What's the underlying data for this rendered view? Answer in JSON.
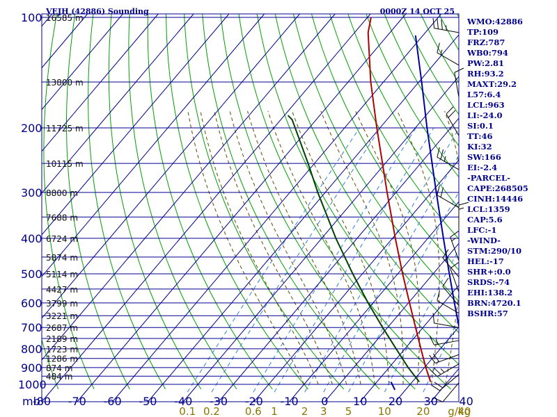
{
  "header": {
    "station": "VEJH (42886) Sounding",
    "time": "0000Z 14 OCT 25"
  },
  "chart_data": {
    "type": "skew-t",
    "title": "VEJH (42886) Sounding",
    "pressure_unit": "mb",
    "pressure_ticks": [
      100,
      200,
      300,
      400,
      500,
      600,
      700,
      800,
      900,
      1000
    ],
    "pressure_range": [
      100,
      1050
    ],
    "temperature_ticks": [
      -80,
      -70,
      -60,
      -50,
      -40,
      -30,
      -20,
      -10,
      0,
      10,
      20,
      30,
      40
    ],
    "temperature_range_at_base": [
      -80,
      40
    ],
    "mixing_ratio_unit": "g/kg",
    "mixing_ratio_ticks": [
      0.1,
      0.2,
      0.6,
      1.0,
      2.0,
      3.0,
      5.0,
      10.0,
      20.0,
      40.0
    ],
    "height_labels": [
      {
        "p": 100,
        "label": "16585 m"
      },
      {
        "p": 150,
        "label": "13800 m"
      },
      {
        "p": 200,
        "label": "11725 m"
      },
      {
        "p": 250,
        "label": "10115 m"
      },
      {
        "p": 300,
        "label": "8800 m"
      },
      {
        "p": 350,
        "label": "7688 m"
      },
      {
        "p": 400,
        "label": "6724 m"
      },
      {
        "p": 450,
        "label": "5874 m"
      },
      {
        "p": 500,
        "label": "5114 m"
      },
      {
        "p": 550,
        "label": "4427 m"
      },
      {
        "p": 600,
        "label": "3799 m"
      },
      {
        "p": 650,
        "label": "3221 m"
      },
      {
        "p": 700,
        "label": "2687 m"
      },
      {
        "p": 750,
        "label": "2189 m"
      },
      {
        "p": 800,
        "label": "1723 m"
      },
      {
        "p": 850,
        "label": "1286 m"
      },
      {
        "p": 900,
        "label": "874 m"
      },
      {
        "p": 950,
        "label": "484 m"
      }
    ],
    "series": [
      {
        "name": "temperature",
        "color": "#b00000",
        "points": [
          {
            "p": 985,
            "t": 25.2
          },
          {
            "p": 900,
            "t": 20.4
          },
          {
            "p": 800,
            "t": 14.5
          },
          {
            "p": 700,
            "t": 7.9
          },
          {
            "p": 600,
            "t": 0.3
          },
          {
            "p": 500,
            "t": -8.6
          },
          {
            "p": 400,
            "t": -19.2
          },
          {
            "p": 300,
            "t": -32.5
          },
          {
            "p": 200,
            "t": -50.9
          },
          {
            "p": 150,
            "t": -63.6
          },
          {
            "p": 110,
            "t": -76.2
          },
          {
            "p": 100,
            "t": -79.0
          }
        ]
      },
      {
        "name": "dewpoint",
        "color": "#004000",
        "points": [
          {
            "p": 985,
            "t": 22.0
          },
          {
            "p": 900,
            "t": 15.4
          },
          {
            "p": 800,
            "t": 7.5
          },
          {
            "p": 700,
            "t": -1.4
          },
          {
            "p": 600,
            "t": -11.4
          },
          {
            "p": 500,
            "t": -22.7
          },
          {
            "p": 400,
            "t": -36.0
          },
          {
            "p": 300,
            "t": -52.1
          },
          {
            "p": 250,
            "t": -61.8
          },
          {
            "p": 190,
            "t": -76.8
          },
          {
            "p": 185,
            "t": -79.0
          }
        ]
      },
      {
        "name": "parcel",
        "color": "#0000a0",
        "points": [
          {
            "p": 1020,
            "t": 38.0
          },
          {
            "p": 950,
            "t": 34.0
          },
          {
            "p": 900,
            "t": 31.5
          },
          {
            "p": 800,
            "t": 26.3
          },
          {
            "p": 700,
            "t": 20.2
          },
          {
            "p": 600,
            "t": 13.0
          },
          {
            "p": 500,
            "t": 4.6
          },
          {
            "p": 400,
            "t": -5.6
          },
          {
            "p": 300,
            "t": -18.6
          },
          {
            "p": 200,
            "t": -36.7
          },
          {
            "p": 150,
            "t": -49.2
          },
          {
            "p": 112,
            "t": -62.1
          }
        ]
      },
      {
        "name": "surface-lift",
        "color": "#0000a0",
        "points": [
          {
            "p": 985,
            "t": 14.0
          },
          {
            "p": 1035,
            "t": 17.0
          }
        ]
      }
    ],
    "wind_barbs": [
      {
        "p": 110,
        "dir": 280,
        "spd": 35
      },
      {
        "p": 135,
        "dir": 300,
        "spd": 15
      },
      {
        "p": 165,
        "dir": 350,
        "spd": 10
      },
      {
        "p": 210,
        "dir": 330,
        "spd": 20
      },
      {
        "p": 260,
        "dir": 300,
        "spd": 25
      },
      {
        "p": 330,
        "dir": 300,
        "spd": 20
      },
      {
        "p": 380,
        "dir": 0,
        "spd": 15
      },
      {
        "p": 460,
        "dir": 340,
        "spd": 15
      },
      {
        "p": 510,
        "dir": 320,
        "spd": 15
      },
      {
        "p": 560,
        "dir": 340,
        "spd": 10
      },
      {
        "p": 610,
        "dir": 320,
        "spd": 10
      },
      {
        "p": 640,
        "dir": 300,
        "spd": 10
      },
      {
        "p": 700,
        "dir": 280,
        "spd": 10
      },
      {
        "p": 760,
        "dir": 260,
        "spd": 15
      },
      {
        "p": 830,
        "dir": 250,
        "spd": 20
      },
      {
        "p": 880,
        "dir": 240,
        "spd": 25
      },
      {
        "p": 940,
        "dir": 230,
        "spd": 20
      },
      {
        "p": 990,
        "dir": 220,
        "spd": 10
      }
    ]
  },
  "indices": [
    "WMO:42886",
    "TP:109",
    "FRZ:787",
    "WB0:794",
    "PW:2.81",
    "RH:93.2",
    "MAXT:29.2",
    "L57:6.4",
    "LCL:963",
    "LI:-24.0",
    "SI:0.1",
    "TT:46",
    "KI:32",
    "SW:166",
    "EI:-2.4",
    "-PARCEL-",
    "CAPE:268505",
    "CINH:14446",
    "LCL:1359",
    "CAP:5.6",
    "LFC:-1",
    "-WIND-",
    "STM:290/10",
    "HEL:-17",
    "SHR+:0.0",
    "SRDS:-74",
    "EHI:138.2",
    "BRN:4720.1",
    "BSHR:57"
  ],
  "colors": {
    "grid": "#000090",
    "dry_adiabat": "#00a000",
    "moist_adiabat": "#5a4a00",
    "mixing_ratio": "#2f7fd8",
    "text": "#00008b",
    "mixing_label": "#8b7500"
  }
}
